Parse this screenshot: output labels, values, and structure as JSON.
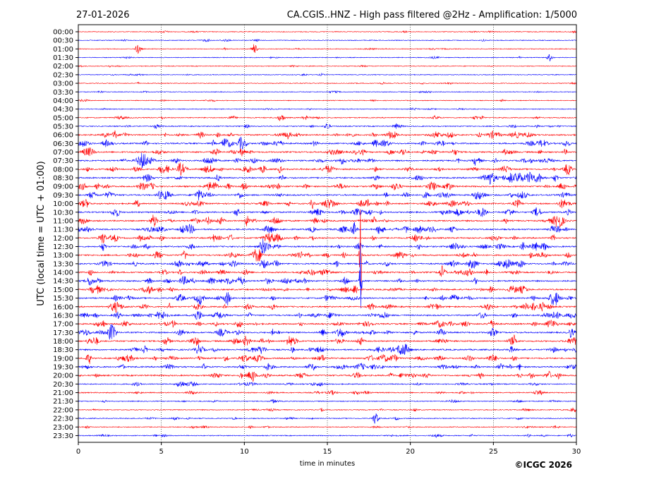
{
  "header": {
    "date": "27-01-2026",
    "title": "CA.CGIS..HNZ - High pass filtered @2Hz - Amplification: 1/5000"
  },
  "copyright": "©ICGC 2026",
  "chart_data": {
    "type": "line",
    "xlabel": "time in minutes",
    "ylabel": "UTC (local time = UTC + 01:00)",
    "xlim": [
      0,
      30
    ],
    "x_ticks": [
      "0",
      "5",
      "10",
      "15",
      "20",
      "25",
      "30"
    ],
    "x_tick_values": [
      0,
      5,
      10,
      15,
      20,
      25,
      30
    ],
    "grid": "vertical dotted at every 5 minutes",
    "row_labels": [
      "00:00",
      "00:30",
      "01:00",
      "01:30",
      "02:00",
      "02:30",
      "03:00",
      "03:30",
      "04:00",
      "04:30",
      "05:00",
      "05:30",
      "06:00",
      "06:30",
      "07:00",
      "07:30",
      "08:00",
      "08:30",
      "09:00",
      "09:30",
      "10:00",
      "10:30",
      "11:00",
      "11:30",
      "12:00",
      "12:30",
      "13:00",
      "13:30",
      "14:00",
      "14:30",
      "15:00",
      "15:30",
      "16:00",
      "16:30",
      "17:00",
      "17:30",
      "18:00",
      "18:30",
      "19:00",
      "19:30",
      "20:00",
      "20:30",
      "21:00",
      "21:30",
      "22:00",
      "22:30",
      "23:00",
      "23:30"
    ],
    "trace_colors": [
      "#ff0000",
      "#0000ff"
    ],
    "events": [
      {
        "row": 2,
        "minute": 3.6,
        "amp": 7
      },
      {
        "row": 2,
        "minute": 10.6,
        "amp": 7
      },
      {
        "row": 3,
        "minute": 28.4,
        "amp": 5
      },
      {
        "row": 11,
        "minute": 15.0,
        "amp": 5
      },
      {
        "row": 12,
        "minute": 2.2,
        "amp": 6
      },
      {
        "row": 13,
        "minute": 8.8,
        "amp": 8
      },
      {
        "row": 13,
        "minute": 1.6,
        "amp": 5
      },
      {
        "row": 15,
        "minute": 3.9,
        "amp": 6
      },
      {
        "row": 16,
        "minute": 5.0,
        "amp": 5
      },
      {
        "row": 18,
        "minute": 10.0,
        "amp": 6
      },
      {
        "row": 23,
        "minute": 16.6,
        "amp": 10
      },
      {
        "row": 24,
        "minute": 1.4,
        "amp": 6
      },
      {
        "row": 25,
        "minute": 1.5,
        "amp": 6
      },
      {
        "row": 26,
        "minute": 17.0,
        "amp": 80
      },
      {
        "row": 29,
        "minute": 17.0,
        "amp": 60
      },
      {
        "row": 31,
        "minute": 9.0,
        "amp": 9
      },
      {
        "row": 33,
        "minute": 29.0,
        "amp": 5
      },
      {
        "row": 35,
        "minute": 2.0,
        "amp": 6
      },
      {
        "row": 37,
        "minute": 4.0,
        "amp": 5
      },
      {
        "row": 38,
        "minute": 8.9,
        "amp": 5
      },
      {
        "row": 45,
        "minute": 17.9,
        "amp": 9
      }
    ]
  }
}
